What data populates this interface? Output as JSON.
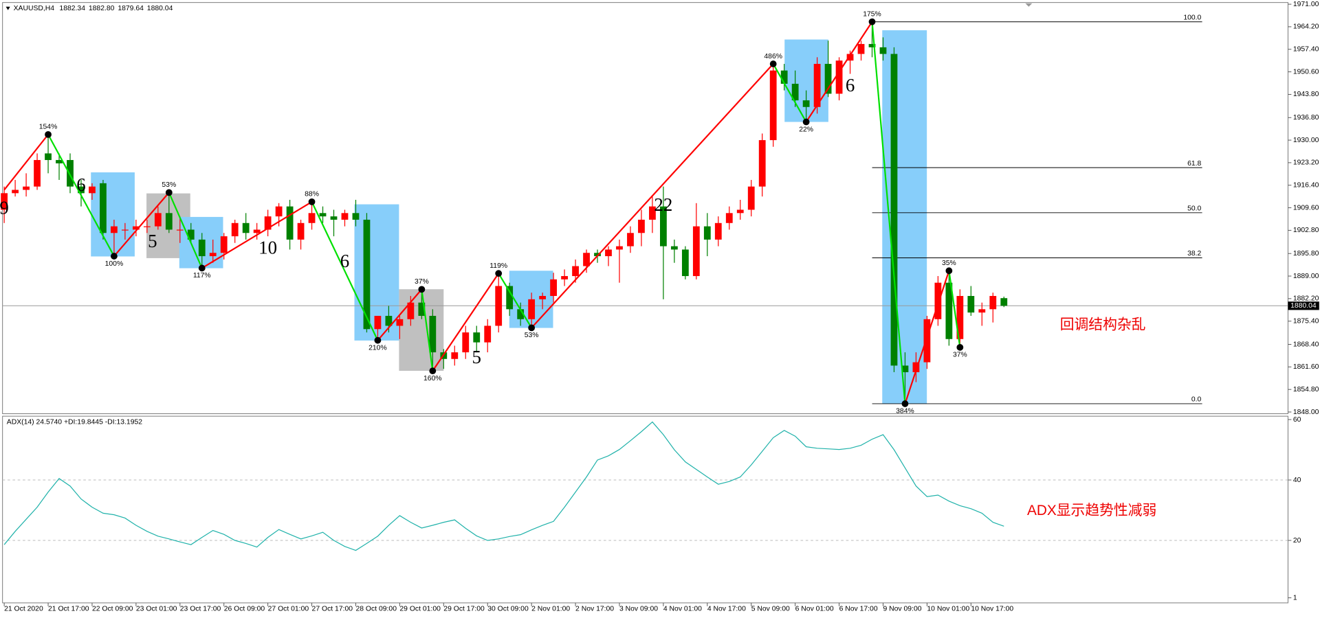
{
  "chart_data": {
    "type": "candlestick",
    "title": "XAUUSD,H4",
    "last_bar_labels": [
      "1882.34",
      "1882.80",
      "1879.64",
      "1880.04"
    ],
    "up_color": "#ff0000",
    "down_color": "#008000",
    "categories": [
      "21 Oct 2020",
      null,
      null,
      null,
      "21 Oct 17:00",
      null,
      null,
      null,
      "22 Oct 09:00",
      null,
      null,
      null,
      "23 Oct 01:00",
      null,
      null,
      null,
      "23 Oct 17:00",
      null,
      null,
      null,
      "26 Oct 09:00",
      null,
      null,
      null,
      "27 Oct 01:00",
      null,
      null,
      null,
      "27 Oct 17:00",
      null,
      null,
      null,
      "28 Oct 09:00",
      null,
      null,
      null,
      "29 Oct 01:00",
      null,
      null,
      null,
      "29 Oct 17:00",
      null,
      null,
      null,
      "30 Oct 09:00",
      null,
      null,
      null,
      "2 Nov 01:00",
      null,
      null,
      null,
      "2 Nov 17:00",
      null,
      null,
      null,
      "3 Nov 09:00",
      null,
      null,
      null,
      "4 Nov 01:00",
      null,
      null,
      null,
      "4 Nov 17:00",
      null,
      null,
      null,
      "5 Nov 09:00",
      null,
      null,
      null,
      "6 Nov 01:00",
      null,
      null,
      null,
      "6 Nov 17:00",
      null,
      null,
      null,
      "9 Nov 09:00",
      null,
      null,
      null,
      "10 Nov 01:00",
      null,
      null,
      null,
      "10 Nov 17:00",
      null,
      null,
      null
    ],
    "ohlc": [
      [
        1909,
        1916,
        1905,
        1914
      ],
      [
        1914,
        1918,
        1913,
        1915
      ],
      [
        1915,
        1920,
        1913,
        1916
      ],
      [
        1916,
        1926,
        1915,
        1924
      ],
      [
        1926,
        1931.7,
        1920,
        1924
      ],
      [
        1924,
        1926,
        1918,
        1923
      ],
      [
        1924,
        1926,
        1914,
        1916
      ],
      [
        1916,
        1918,
        1910,
        1914
      ],
      [
        1914,
        1917,
        1912,
        1916
      ],
      [
        1917,
        1918,
        1900,
        1902
      ],
      [
        1902,
        1906,
        1895,
        1904
      ],
      [
        1903,
        1905,
        1900,
        1903
      ],
      [
        1903,
        1906,
        1901,
        1904
      ],
      [
        1904,
        1906,
        1902,
        1904
      ],
      [
        1904,
        1910,
        1903,
        1908
      ],
      [
        1908,
        1914.2,
        1902,
        1903
      ],
      [
        1903,
        1907,
        1899,
        1903
      ],
      [
        1903,
        1905,
        1899,
        1900
      ],
      [
        1900,
        1902,
        1891.4,
        1895
      ],
      [
        1895,
        1900,
        1893,
        1896
      ],
      [
        1896,
        1902,
        1894,
        1901
      ],
      [
        1901,
        1906,
        1899,
        1905
      ],
      [
        1905,
        1908,
        1900,
        1902
      ],
      [
        1902,
        1905,
        1900,
        1903
      ],
      [
        1903,
        1909,
        1901,
        1907
      ],
      [
        1907,
        1911,
        1904,
        1910
      ],
      [
        1910,
        1912,
        1897,
        1900
      ],
      [
        1900,
        1906,
        1897,
        1905
      ],
      [
        1905,
        1911.4,
        1903,
        1908
      ],
      [
        1908,
        1910,
        1905,
        1907
      ],
      [
        1907,
        1909,
        1901,
        1906
      ],
      [
        1906,
        1909,
        1904,
        1908
      ],
      [
        1908,
        1912,
        1904,
        1906
      ],
      [
        1906,
        1908,
        1872,
        1873
      ],
      [
        1873,
        1877,
        1869.6,
        1877
      ],
      [
        1877,
        1880,
        1872,
        1874
      ],
      [
        1874,
        1877,
        1870,
        1876
      ],
      [
        1876,
        1883,
        1874,
        1881
      ],
      [
        1881,
        1885,
        1876,
        1877
      ],
      [
        1877,
        1879,
        1860.4,
        1866
      ],
      [
        1866,
        1867,
        1861,
        1864
      ],
      [
        1864,
        1868,
        1862,
        1866
      ],
      [
        1866,
        1874,
        1864,
        1872
      ],
      [
        1872,
        1874,
        1866,
        1869
      ],
      [
        1869,
        1876,
        1866,
        1874
      ],
      [
        1874,
        1889.8,
        1872,
        1886
      ],
      [
        1886,
        1887,
        1877,
        1879
      ],
      [
        1879,
        1881,
        1874,
        1876
      ],
      [
        1876,
        1884,
        1873.4,
        1882
      ],
      [
        1882,
        1884,
        1879,
        1883
      ],
      [
        1883,
        1890,
        1881,
        1888
      ],
      [
        1888,
        1891,
        1886,
        1889
      ],
      [
        1889,
        1894,
        1887,
        1892
      ],
      [
        1892,
        1897,
        1890,
        1896
      ],
      [
        1896,
        1897,
        1893,
        1895
      ],
      [
        1895,
        1898,
        1892,
        1897
      ],
      [
        1897,
        1900,
        1887,
        1898
      ],
      [
        1898,
        1904,
        1896,
        1902
      ],
      [
        1902,
        1909,
        1898,
        1906
      ],
      [
        1906,
        1913,
        1902,
        1910
      ],
      [
        1910,
        1916,
        1882,
        1898
      ],
      [
        1898,
        1900,
        1893,
        1897
      ],
      [
        1897,
        1898,
        1888,
        1889
      ],
      [
        1889,
        1911,
        1888,
        1904
      ],
      [
        1904,
        1908,
        1895,
        1900
      ],
      [
        1900,
        1907,
        1898,
        1905
      ],
      [
        1905,
        1910,
        1903,
        1908
      ],
      [
        1908,
        1912,
        1906,
        1909
      ],
      [
        1909,
        1918,
        1907,
        1916
      ],
      [
        1916,
        1932,
        1913,
        1930
      ],
      [
        1930,
        1953,
        1928,
        1951
      ],
      [
        1951,
        1953,
        1945,
        1947
      ],
      [
        1947,
        1951,
        1940,
        1942
      ],
      [
        1942,
        1945,
        1935.5,
        1940
      ],
      [
        1940,
        1955,
        1938,
        1953
      ],
      [
        1953,
        1960,
        1943,
        1944
      ],
      [
        1944,
        1955,
        1942,
        1954
      ],
      [
        1954,
        1957,
        1950,
        1956
      ],
      [
        1956,
        1960,
        1954,
        1959
      ],
      [
        1959,
        1965.7,
        1955,
        1958
      ],
      [
        1958,
        1961,
        1954,
        1956
      ],
      [
        1956,
        1958,
        1860,
        1862
      ],
      [
        1862,
        1866,
        1850.5,
        1860
      ],
      [
        1860,
        1866,
        1857,
        1863
      ],
      [
        1863,
        1877,
        1861,
        1876
      ],
      [
        1876,
        1889,
        1874,
        1887
      ],
      [
        1887,
        1890.6,
        1868,
        1870
      ],
      [
        1870,
        1885,
        1867.5,
        1883
      ],
      [
        1883,
        1886,
        1877,
        1878
      ],
      [
        1878,
        1881,
        1874,
        1879
      ],
      [
        1879,
        1884,
        1875,
        1883
      ],
      [
        1882.34,
        1882.8,
        1879.64,
        1880.04
      ]
    ],
    "ylim": [
      1848,
      1971
    ],
    "yticks": [
      {
        "value": 1971,
        "label": "1971.00"
      },
      {
        "value": 1964.2,
        "label": "1964.20"
      },
      {
        "value": 1957.4,
        "label": "1957.40"
      },
      {
        "value": 1950.6,
        "label": "1950.60"
      },
      {
        "value": 1943.8,
        "label": "1943.80"
      },
      {
        "value": 1936.8,
        "label": "1936.80"
      },
      {
        "value": 1930,
        "label": "1930.00"
      },
      {
        "value": 1923.2,
        "label": "1923.20"
      },
      {
        "value": 1916.4,
        "label": "1916.40"
      },
      {
        "value": 1909.6,
        "label": "1909.60"
      },
      {
        "value": 1902.8,
        "label": "1902.80"
      },
      {
        "value": 1895.8,
        "label": "1895.80"
      },
      {
        "value": 1889,
        "label": "1889.00"
      },
      {
        "value": 1882.2,
        "label": "1882.20"
      },
      {
        "value": 1875.4,
        "label": "1875.40"
      },
      {
        "value": 1868.4,
        "label": "1868.40"
      },
      {
        "value": 1861.6,
        "label": "1861.60"
      },
      {
        "value": 1854.8,
        "label": "1854.80"
      },
      {
        "value": 1848,
        "label": "1848.00"
      }
    ],
    "zigzag": [
      {
        "bar": 0,
        "price": 1915
      },
      {
        "bar": 4,
        "price": 1931.7,
        "label": "154%"
      },
      {
        "bar": 10,
        "price": 1895,
        "label": "100%"
      },
      {
        "bar": 15,
        "price": 1914.2,
        "label": "53%"
      },
      {
        "bar": 18,
        "price": 1891.4,
        "label": "117%"
      },
      {
        "bar": 28,
        "price": 1911.4,
        "label": "88%"
      },
      {
        "bar": 34,
        "price": 1869.6,
        "label": "210%"
      },
      {
        "bar": 38,
        "price": 1885,
        "label": "37%"
      },
      {
        "bar": 39,
        "price": 1860.4,
        "label": "160%"
      },
      {
        "bar": 45,
        "price": 1889.8,
        "label": "119%"
      },
      {
        "bar": 48,
        "price": 1873.4,
        "label": "53%"
      },
      {
        "bar": 70,
        "price": 1953,
        "label": "486%"
      },
      {
        "bar": 73,
        "price": 1935.5,
        "label": "22%"
      },
      {
        "bar": 79,
        "price": 1965.7,
        "label": "175%"
      },
      {
        "bar": 82,
        "price": 1850.5,
        "label": "384%"
      },
      {
        "bar": 86,
        "price": 1890.6,
        "label": "35%"
      },
      {
        "bar": 87,
        "price": 1867.5,
        "label": "37%"
      }
    ],
    "wave_counts": [
      {
        "label": "9",
        "bar": 0,
        "price": 1909
      },
      {
        "label": "6",
        "bar": 7,
        "price": 1916
      },
      {
        "label": "5",
        "bar": 13.5,
        "price": 1899
      },
      {
        "label": "10",
        "bar": 24,
        "price": 1897
      },
      {
        "label": "6",
        "bar": 31,
        "price": 1893
      },
      {
        "label": "5",
        "bar": 43,
        "price": 1864
      },
      {
        "label": "22",
        "bar": 60,
        "price": 1910
      },
      {
        "label": "6",
        "bar": 77,
        "price": 1946
      }
    ],
    "fib_levels": [
      {
        "label": "100.0",
        "price": 1965.7
      },
      {
        "label": "61.8",
        "price": 1921.7
      },
      {
        "label": "50.0",
        "price": 1908.1
      },
      {
        "label": "38.2",
        "price": 1894.5
      },
      {
        "label": "0.0",
        "price": 1850.5
      }
    ],
    "annotations": [
      "回调结构杂乱",
      "ADX显示趋势性减弱"
    ],
    "indicator": {
      "type": "line",
      "title": "ADX(14) 24.5740 +DI:19.8445 -DI:13.1952",
      "color": "#20b2aa",
      "values": [
        18.6,
        23,
        27,
        31,
        36,
        40.5,
        38,
        33.7,
        31,
        29,
        28.5,
        27.4,
        25,
        23,
        21.4,
        20.5,
        19.5,
        18.6,
        21,
        23.3,
        22,
        20,
        19,
        17.8,
        21,
        23.6,
        22,
        20.5,
        21.5,
        22.7,
        20,
        18,
        16.7,
        19,
        21.4,
        25,
        28.2,
        26,
        24.1,
        25,
        26,
        26.8,
        24,
        21.5,
        20,
        20.5,
        21.3,
        21.9,
        23.5,
        25,
        26.3,
        31,
        36,
        41,
        46.6,
        48,
        50.1,
        53,
        56,
        59.2,
        55,
        50,
        46,
        43.5,
        41,
        38.6,
        39.5,
        41,
        45,
        49.5,
        54,
        56.4,
        54.5,
        51,
        50.5,
        50.3,
        50.1,
        50.5,
        51.5,
        53.5,
        55,
        50,
        44,
        38,
        34.5,
        35,
        33,
        31.5,
        30.5,
        29,
        26,
        24.7
      ],
      "ylim": [
        1,
        60
      ],
      "yticks": [
        60,
        40,
        20,
        1
      ],
      "levels": [
        40,
        20
      ]
    }
  }
}
